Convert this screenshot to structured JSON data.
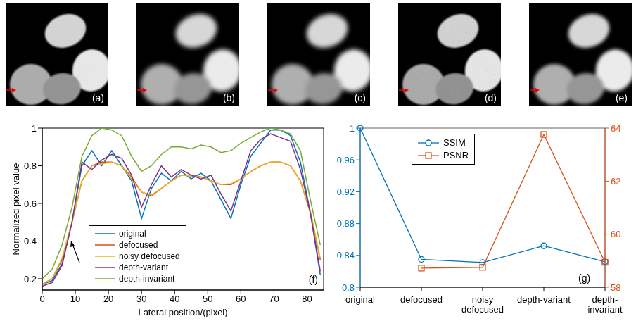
{
  "images": [
    {
      "panel": "(a)"
    },
    {
      "panel": "(b)"
    },
    {
      "panel": "(c)"
    },
    {
      "panel": "(d)"
    },
    {
      "panel": "(e)"
    }
  ],
  "chart_data": [
    {
      "type": "line",
      "panel": "(f)",
      "xlabel": "Lateral position/(pixel)",
      "ylabel": "Normalized pixel value",
      "xlim": [
        0,
        85
      ],
      "xticks": [
        0,
        10,
        20,
        30,
        40,
        50,
        60,
        70,
        80
      ],
      "ylim": [
        0.14,
        1
      ],
      "yticks": [
        0.2,
        0.4,
        0.6,
        0.8,
        1
      ],
      "legend": "lower left",
      "x": [
        0,
        3,
        6,
        9,
        12,
        15,
        18,
        21,
        24,
        27,
        30,
        33,
        36,
        39,
        42,
        45,
        48,
        51,
        54,
        57,
        60,
        63,
        66,
        69,
        72,
        75,
        78,
        81,
        84
      ],
      "series": [
        {
          "name": "original",
          "color": "#0072BD",
          "values": [
            0.17,
            0.19,
            0.28,
            0.5,
            0.8,
            0.88,
            0.8,
            0.88,
            0.8,
            0.72,
            0.52,
            0.68,
            0.76,
            0.72,
            0.77,
            0.73,
            0.76,
            0.72,
            0.62,
            0.52,
            0.7,
            0.85,
            0.92,
            0.99,
            0.99,
            0.96,
            0.82,
            0.55,
            0.22
          ]
        },
        {
          "name": "defocused",
          "color": "#D95319",
          "values": [
            0.17,
            0.2,
            0.3,
            0.5,
            0.72,
            0.8,
            0.82,
            0.82,
            0.8,
            0.74,
            0.66,
            0.64,
            0.68,
            0.72,
            0.75,
            0.75,
            0.74,
            0.72,
            0.7,
            0.7,
            0.73,
            0.77,
            0.8,
            0.82,
            0.82,
            0.8,
            0.72,
            0.55,
            0.3
          ]
        },
        {
          "name": "noisy defocused",
          "color": "#EDB120",
          "values": [
            0.17,
            0.2,
            0.31,
            0.5,
            0.72,
            0.8,
            0.81,
            0.82,
            0.8,
            0.73,
            0.66,
            0.645,
            0.68,
            0.72,
            0.75,
            0.745,
            0.74,
            0.72,
            0.7,
            0.705,
            0.73,
            0.77,
            0.8,
            0.82,
            0.82,
            0.8,
            0.72,
            0.56,
            0.31
          ]
        },
        {
          "name": "depth-variant",
          "color": "#7E2F8E",
          "values": [
            0.16,
            0.18,
            0.27,
            0.5,
            0.82,
            0.78,
            0.83,
            0.86,
            0.84,
            0.75,
            0.58,
            0.7,
            0.8,
            0.74,
            0.78,
            0.75,
            0.73,
            0.75,
            0.65,
            0.56,
            0.72,
            0.88,
            0.94,
            0.97,
            0.95,
            0.93,
            0.78,
            0.55,
            0.24
          ]
        },
        {
          "name": "depth-invariant",
          "color": "#77AC30",
          "values": [
            0.2,
            0.25,
            0.38,
            0.58,
            0.85,
            0.96,
            1.0,
            0.99,
            0.96,
            0.85,
            0.77,
            0.8,
            0.86,
            0.9,
            0.9,
            0.89,
            0.91,
            0.9,
            0.87,
            0.88,
            0.92,
            0.95,
            0.98,
            1.0,
            0.99,
            0.97,
            0.88,
            0.62,
            0.38
          ]
        }
      ]
    },
    {
      "type": "line",
      "panel": "(g)",
      "categories": [
        "original",
        "defocused",
        "noisy defocused",
        "depth-variant",
        "depth-invariant"
      ],
      "ylim": [
        0.8,
        1
      ],
      "yticks": [
        0.8,
        0.84,
        0.88,
        0.92,
        0.96,
        1
      ],
      "y2lim": [
        58,
        64
      ],
      "y2ticks": [
        58,
        60,
        62,
        64
      ],
      "legend": "upper center",
      "series": [
        {
          "name": "SSIM",
          "color": "#0072BD",
          "marker": "circle",
          "values": [
            1,
            0.835,
            0.831,
            0.852,
            0.832
          ]
        },
        {
          "name": "PSNR",
          "color": "#D95319",
          "marker": "square",
          "axis": "y2",
          "values": [
            null,
            58.72,
            58.75,
            63.76,
            58.94
          ]
        }
      ]
    }
  ]
}
